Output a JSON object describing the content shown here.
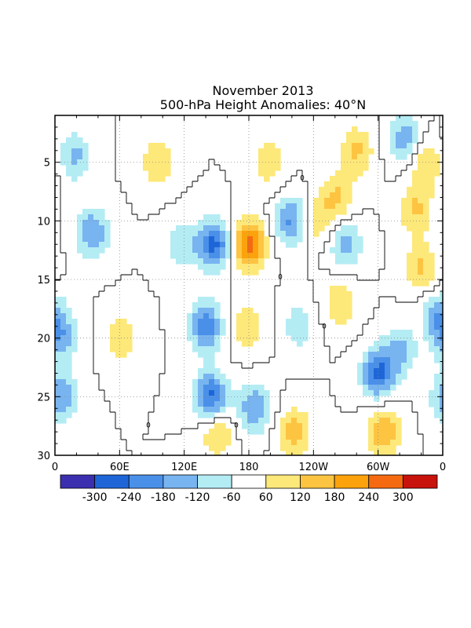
{
  "chart_data": {
    "type": "heatmap",
    "title": "November 2013",
    "subtitle": "500-hPa Height Anomalies: 40°N",
    "xlabel": "",
    "ylabel": "",
    "x_ticks": [
      "0",
      "60E",
      "120E",
      "180",
      "120W",
      "60W",
      "0"
    ],
    "y_ticks": [
      "5",
      "10",
      "15",
      "20",
      "25",
      "30"
    ],
    "ylim": [
      1,
      30
    ],
    "grid": true,
    "zero_contour_label": "0",
    "colorbar_labels": [
      "-300",
      "-240",
      "-180",
      "-120",
      "-60",
      "60",
      "120",
      "180",
      "240",
      "300"
    ],
    "colors": [
      "#3b2fb0",
      "#1e66d8",
      "#4a90e8",
      "#78b4f0",
      "#b4ecf4",
      "#ffffff",
      "#fde87a",
      "#fdc442",
      "#fba20c",
      "#f56a10",
      "#c8120c"
    ],
    "features": [
      {
        "lon": 18,
        "day": 4.5,
        "value": -140
      },
      {
        "lon": 35,
        "day": 11,
        "value": -180
      },
      {
        "lon": 5,
        "day": 20,
        "value": -150
      },
      {
        "lon": 5,
        "day": 25,
        "value": -180
      },
      {
        "lon": 62,
        "day": 20,
        "value": 100
      },
      {
        "lon": 95,
        "day": 5,
        "value": 110
      },
      {
        "lon": 118,
        "day": 12,
        "value": -110
      },
      {
        "lon": 148,
        "day": 12,
        "value": -260
      },
      {
        "lon": 140,
        "day": 19,
        "value": -220
      },
      {
        "lon": 145,
        "day": 25,
        "value": -260
      },
      {
        "lon": 150,
        "day": 28,
        "value": 130
      },
      {
        "lon": 180,
        "day": 12,
        "value": 260
      },
      {
        "lon": 178,
        "day": 19,
        "value": 110
      },
      {
        "lon": 185,
        "day": 26,
        "value": -180
      },
      {
        "lon": 198,
        "day": 5,
        "value": 100
      },
      {
        "lon": 220,
        "day": 10,
        "value": -200
      },
      {
        "lon": 226,
        "day": 19,
        "value": -100
      },
      {
        "lon": 222,
        "day": 28,
        "value": 150
      },
      {
        "lon": 242,
        "day": 10,
        "value": 110
      },
      {
        "lon": 262,
        "day": 8,
        "value": 130
      },
      {
        "lon": 270,
        "day": 12,
        "value": -150
      },
      {
        "lon": 265,
        "day": 17,
        "value": 120
      },
      {
        "lon": 280,
        "day": 4,
        "value": 130
      },
      {
        "lon": 300,
        "day": 23,
        "value": -250
      },
      {
        "lon": 320,
        "day": 21,
        "value": -130
      },
      {
        "lon": 305,
        "day": 28,
        "value": 180
      },
      {
        "lon": 325,
        "day": 3,
        "value": -160
      },
      {
        "lon": 335,
        "day": 9,
        "value": 130
      },
      {
        "lon": 340,
        "day": 14,
        "value": 130
      },
      {
        "lon": 345,
        "day": 5,
        "value": 130
      },
      {
        "lon": 355,
        "day": 18,
        "value": -140
      }
    ]
  }
}
